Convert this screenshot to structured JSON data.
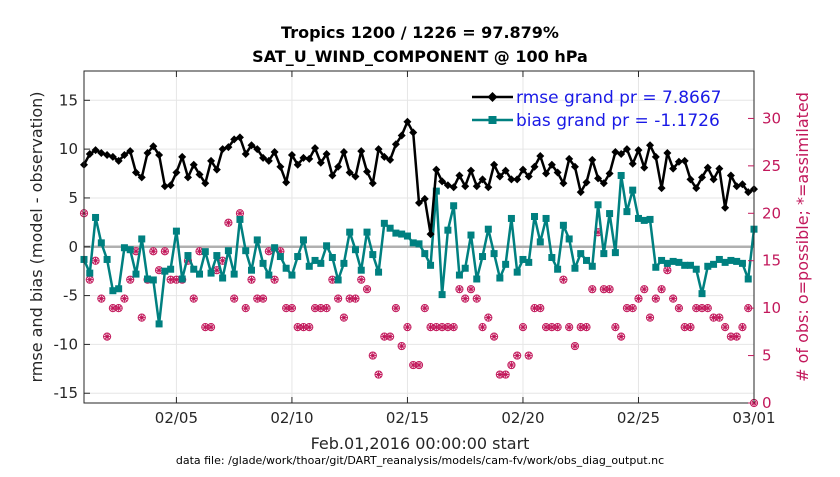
{
  "chart_data": {
    "type": "line",
    "title": "Tropics 1200 / 1226 = 97.879%",
    "subtitle": "SAT_U_WIND_COMPONENT @ 100 hPa",
    "xlabel": "Feb.01,2016 00:00:00 start",
    "ylabel": "rmse and bias (model - observation)",
    "ylabel_right": "# of obs: o=possible; *=assimilated",
    "footer": "data file: /glade/work/thoar/git/DART_reanalysis/models/cam-fv/work/obs_diag_output.nc",
    "xlim": [
      1,
      30
    ],
    "ylim": [
      -16,
      18
    ],
    "ylim_right": [
      0,
      35
    ],
    "x_ticks": [
      5,
      10,
      15,
      20,
      25,
      30
    ],
    "x_tick_labels": [
      "02/05",
      "02/10",
      "02/15",
      "02/20",
      "02/25",
      "03/01"
    ],
    "y_ticks": [
      -15,
      -10,
      -5,
      0,
      5,
      10,
      15
    ],
    "y_tick_labels": [
      "-15",
      "-10",
      "-5",
      "0",
      "5",
      "10",
      "15"
    ],
    "y_right_ticks": [
      0,
      5,
      10,
      15,
      20,
      25,
      30
    ],
    "y_right_tick_labels": [
      "0",
      "5",
      "10",
      "15",
      "20",
      "25",
      "30"
    ],
    "grid": true,
    "legend_position": "top-right",
    "colors": {
      "rmse": "#000000",
      "bias": "#008080",
      "obs": "#c2185b",
      "zero_line": "#b0b0b0",
      "legend_text": "#1a1ae6"
    },
    "x": [
      1.0,
      1.25,
      1.5,
      1.75,
      2.0,
      2.25,
      2.5,
      2.75,
      3.0,
      3.25,
      3.5,
      3.75,
      4.0,
      4.25,
      4.5,
      4.75,
      5.0,
      5.25,
      5.5,
      5.75,
      6.0,
      6.25,
      6.5,
      6.75,
      7.0,
      7.25,
      7.5,
      7.75,
      8.0,
      8.25,
      8.5,
      8.75,
      9.0,
      9.25,
      9.5,
      9.75,
      10.0,
      10.25,
      10.5,
      10.75,
      11.0,
      11.25,
      11.5,
      11.75,
      12.0,
      12.25,
      12.5,
      12.75,
      13.0,
      13.25,
      13.5,
      13.75,
      14.0,
      14.25,
      14.5,
      14.75,
      15.0,
      15.25,
      15.5,
      15.75,
      16.0,
      16.25,
      16.5,
      16.75,
      17.0,
      17.25,
      17.5,
      17.75,
      18.0,
      18.25,
      18.5,
      18.75,
      19.0,
      19.25,
      19.5,
      19.75,
      20.0,
      20.25,
      20.5,
      20.75,
      21.0,
      21.25,
      21.5,
      21.75,
      22.0,
      22.25,
      22.5,
      22.75,
      23.0,
      23.25,
      23.5,
      23.75,
      24.0,
      24.25,
      24.5,
      24.75,
      25.0,
      25.25,
      25.5,
      25.75,
      26.0,
      26.25,
      26.5,
      26.75,
      27.0,
      27.25,
      27.5,
      27.75,
      28.0,
      28.25,
      28.5,
      28.75,
      29.0,
      29.25,
      29.5,
      29.75,
      30.0
    ],
    "series": [
      {
        "name": "rmse grand pr = 7.8667",
        "marker": "diamond",
        "values": [
          8.4,
          9.5,
          9.9,
          9.6,
          9.4,
          9.2,
          8.8,
          9.4,
          9.8,
          7.6,
          7.1,
          9.6,
          10.3,
          9.4,
          6.2,
          6.3,
          7.6,
          9.2,
          7.1,
          8.4,
          7.4,
          6.5,
          8.8,
          7.9,
          10.0,
          10.2,
          11.0,
          11.2,
          9.5,
          10.4,
          10.0,
          9.1,
          8.8,
          9.7,
          8.2,
          6.6,
          9.4,
          8.4,
          9.1,
          9.0,
          10.1,
          8.6,
          9.5,
          7.3,
          8.2,
          9.7,
          7.6,
          7.2,
          9.8,
          7.7,
          6.5,
          10.0,
          9.2,
          8.9,
          10.5,
          11.4,
          12.8,
          11.7,
          4.5,
          4.9,
          1.3,
          7.9,
          6.7,
          6.3,
          6.1,
          7.3,
          6.2,
          7.8,
          6.2,
          6.9,
          6.1,
          8.4,
          7.2,
          7.8,
          6.9,
          6.9,
          7.9,
          7.2,
          8.2,
          9.3,
          7.5,
          8.4,
          7.6,
          6.5,
          9.0,
          8.2,
          5.6,
          6.6,
          8.9,
          7.0,
          6.5,
          7.5,
          9.7,
          9.5,
          10.0,
          8.5,
          9.9,
          8.1,
          10.4,
          9.2,
          6.0,
          9.6,
          8.0,
          8.7,
          8.8,
          6.9,
          6.0,
          7.1,
          8.1,
          6.9,
          8.0,
          4.0,
          7.3,
          6.2,
          6.4,
          5.6,
          5.9
        ],
        "visible_labels": [
          "rmse grand pr = 7.8667"
        ]
      },
      {
        "name": "bias grand pr = -1.1726",
        "marker": "square",
        "values": [
          -1.3,
          -2.7,
          3.0,
          0.4,
          -1.3,
          -4.5,
          -4.3,
          -0.1,
          -0.3,
          -2.8,
          0.8,
          -3.3,
          -3.4,
          -7.9,
          -2.5,
          -2.3,
          1.6,
          -3.3,
          -0.9,
          -2.3,
          -2.8,
          -0.5,
          -2.7,
          -0.9,
          -3.2,
          -0.4,
          -2.8,
          2.8,
          -0.4,
          -2.4,
          0.7,
          -1.7,
          -2.9,
          -0.1,
          -1.0,
          -2.2,
          -2.9,
          -1.0,
          0.7,
          -2.0,
          -1.4,
          -1.7,
          0.1,
          -1.1,
          -3.4,
          -1.7,
          1.5,
          -0.3,
          -2.4,
          1.5,
          -0.8,
          -2.6,
          2.4,
          1.9,
          1.4,
          1.3,
          1.1,
          0.4,
          0.3,
          -0.7,
          -1.9,
          5.7,
          -4.9,
          1.7,
          4.2,
          -2.9,
          -2.2,
          1.2,
          -3.3,
          -1.0,
          1.8,
          -0.7,
          -3.2,
          -1.8,
          2.9,
          -2.6,
          -1.3,
          -1.6,
          3.1,
          0.5,
          2.9,
          -1.1,
          -2.3,
          2.2,
          0.8,
          -2.2,
          -0.7,
          -1.4,
          -2.0,
          4.3,
          -0.7,
          3.4,
          -0.6,
          7.3,
          3.6,
          5.8,
          2.9,
          2.7,
          2.8,
          -2.1,
          -1.4,
          -1.7,
          -1.5,
          -1.6,
          -1.9,
          -1.9,
          -2.3,
          -4.8,
          -2.0,
          -1.8,
          -1.3,
          -1.6,
          -1.4,
          -1.5,
          -1.7,
          -3.3,
          1.8
        ],
        "visible_labels": [
          "bias grand pr = -1.1726"
        ]
      }
    ],
    "obs_count_assimilated": [
      20,
      13,
      15,
      11,
      7,
      10,
      10,
      11,
      13,
      16,
      9,
      13,
      16,
      14,
      16,
      13,
      13,
      13,
      15,
      11,
      16,
      8,
      8,
      14,
      15,
      19,
      11,
      20,
      10,
      13,
      11,
      11,
      16,
      13,
      16,
      10,
      10,
      8,
      8,
      8,
      10,
      10,
      10,
      13,
      11,
      9,
      11,
      11,
      13,
      12,
      5,
      3,
      7,
      7,
      10,
      6,
      8,
      4,
      4,
      10,
      8,
      8,
      8,
      8,
      8,
      12,
      11,
      12,
      11,
      8,
      9,
      7,
      3,
      3,
      4,
      5,
      8,
      5,
      10,
      10,
      8,
      8,
      8,
      13,
      8,
      6,
      8,
      8,
      12,
      18,
      12,
      12,
      8,
      7,
      10,
      10,
      11,
      12,
      9,
      11,
      12,
      14,
      11,
      10,
      8,
      8,
      10,
      10,
      10,
      9,
      9,
      8,
      7,
      7,
      8,
      10,
      0
    ]
  }
}
